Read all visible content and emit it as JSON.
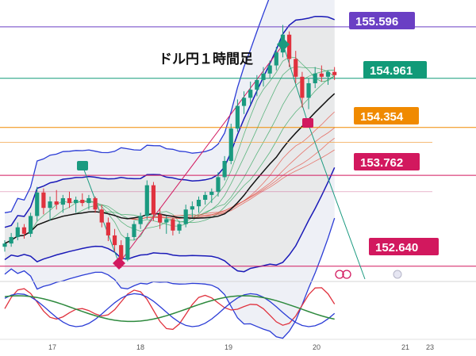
{
  "chart_data": {
    "type": "candlestick",
    "title": "ドル円１時間足",
    "y_range": [
      152.5,
      155.85
    ],
    "x_ticks": [
      "17",
      "18",
      "19",
      "20",
      "21",
      "23"
    ],
    "levels": [
      {
        "name": "level-155596",
        "value": 155.596,
        "label": "155.596",
        "color": "#6a3fc4"
      },
      {
        "name": "level-154961",
        "value": 154.961,
        "label": "154.961",
        "color": "#119a78"
      },
      {
        "name": "level-154354",
        "value": 154.354,
        "label": "154.354",
        "color": "#f08a00"
      },
      {
        "name": "level-153762",
        "value": 153.762,
        "label": "153.762",
        "color": "#d2185e"
      },
      {
        "name": "level-152640",
        "value": 152.64,
        "label": "152.640",
        "color": "#d2185e"
      }
    ],
    "candles_ohlc": [
      [
        152.88,
        152.96,
        152.82,
        152.92
      ],
      [
        152.92,
        153.05,
        152.88,
        153.0
      ],
      [
        153.0,
        153.18,
        152.96,
        153.12
      ],
      [
        153.12,
        153.16,
        152.98,
        153.04
      ],
      [
        153.04,
        153.3,
        153.0,
        153.26
      ],
      [
        153.26,
        153.62,
        153.2,
        153.55
      ],
      [
        153.55,
        153.6,
        153.28,
        153.36
      ],
      [
        153.36,
        153.5,
        153.2,
        153.44
      ],
      [
        153.44,
        153.58,
        153.34,
        153.4
      ],
      [
        153.4,
        153.52,
        153.3,
        153.48
      ],
      [
        153.48,
        153.56,
        153.36,
        153.42
      ],
      [
        153.42,
        153.5,
        153.3,
        153.46
      ],
      [
        153.46,
        153.54,
        153.38,
        153.42
      ],
      [
        153.42,
        153.52,
        153.34,
        153.48
      ],
      [
        153.48,
        153.5,
        153.3,
        153.34
      ],
      [
        153.34,
        153.4,
        153.12,
        153.18
      ],
      [
        153.18,
        153.24,
        152.95,
        153.02
      ],
      [
        153.02,
        153.1,
        152.82,
        152.9
      ],
      [
        152.9,
        152.96,
        152.62,
        152.72
      ],
      [
        152.72,
        153.05,
        152.7,
        153.0
      ],
      [
        153.0,
        153.2,
        152.96,
        153.16
      ],
      [
        153.16,
        153.3,
        153.1,
        153.26
      ],
      [
        153.26,
        153.7,
        153.22,
        153.64
      ],
      [
        153.64,
        153.68,
        153.2,
        153.28
      ],
      [
        153.28,
        153.36,
        153.1,
        153.18
      ],
      [
        153.18,
        153.26,
        153.04,
        153.22
      ],
      [
        153.22,
        153.24,
        153.02,
        153.08
      ],
      [
        153.08,
        153.2,
        153.04,
        153.16
      ],
      [
        153.16,
        153.4,
        153.12,
        153.34
      ],
      [
        153.34,
        153.44,
        153.24,
        153.38
      ],
      [
        153.38,
        153.5,
        153.3,
        153.46
      ],
      [
        153.46,
        153.56,
        153.4,
        153.52
      ],
      [
        153.52,
        153.6,
        153.42,
        153.56
      ],
      [
        153.56,
        153.8,
        153.5,
        153.74
      ],
      [
        153.74,
        154.0,
        153.7,
        153.94
      ],
      [
        153.94,
        154.4,
        153.9,
        154.34
      ],
      [
        154.34,
        154.7,
        154.3,
        154.62
      ],
      [
        154.62,
        154.8,
        154.52,
        154.72
      ],
      [
        154.72,
        154.92,
        154.64,
        154.82
      ],
      [
        154.82,
        155.0,
        154.74,
        154.94
      ],
      [
        154.94,
        155.1,
        154.86,
        155.02
      ],
      [
        155.02,
        155.18,
        154.96,
        155.12
      ],
      [
        155.12,
        155.35,
        155.06,
        155.28
      ],
      [
        155.28,
        155.62,
        155.22,
        155.5
      ],
      [
        155.5,
        155.54,
        155.1,
        155.2
      ],
      [
        155.2,
        155.3,
        154.9,
        154.98
      ],
      [
        154.98,
        155.04,
        154.6,
        154.72
      ],
      [
        154.72,
        154.96,
        154.58,
        154.9
      ],
      [
        154.9,
        155.1,
        154.84,
        155.02
      ],
      [
        155.02,
        155.12,
        154.92,
        154.98
      ],
      [
        154.98,
        155.06,
        154.88,
        155.04
      ],
      [
        155.04,
        155.1,
        154.94,
        155.0
      ]
    ]
  },
  "markers": {
    "high": "155.596 high",
    "low": "152.640 low"
  }
}
